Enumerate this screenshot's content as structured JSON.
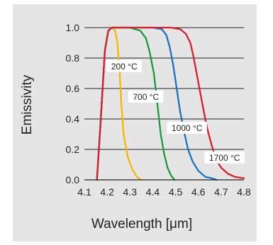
{
  "chart_data": {
    "type": "line",
    "xlabel": "Wavelength [μm]",
    "ylabel": "Emissivity",
    "xlim": [
      4.1,
      4.8
    ],
    "ylim": [
      0.0,
      1.0
    ],
    "grid": "horizontal",
    "x_ticks": [
      "4.1",
      "4.2",
      "4.3",
      "4.4",
      "4.5",
      "4.6",
      "4.7",
      "4.8"
    ],
    "y_ticks": [
      "0.0",
      "0.2",
      "0.4",
      "0.6",
      "0.8",
      "1.0"
    ],
    "series": [
      {
        "name": "200 °C",
        "color": "#f5b800",
        "points": [
          [
            4.155,
            0.0
          ],
          [
            4.17,
            0.35
          ],
          [
            4.19,
            0.85
          ],
          [
            4.205,
            0.98
          ],
          [
            4.22,
            1.0
          ],
          [
            4.235,
            0.98
          ],
          [
            4.245,
            0.9
          ],
          [
            4.255,
            0.7
          ],
          [
            4.262,
            0.5
          ],
          [
            4.272,
            0.3
          ],
          [
            4.29,
            0.15
          ],
          [
            4.31,
            0.07
          ],
          [
            4.33,
            0.02
          ],
          [
            4.35,
            0.0
          ]
        ]
      },
      {
        "name": "700 °C",
        "color": "#1a9a3a",
        "points": [
          [
            4.155,
            0.0
          ],
          [
            4.17,
            0.35
          ],
          [
            4.19,
            0.85
          ],
          [
            4.205,
            0.98
          ],
          [
            4.22,
            1.0
          ],
          [
            4.3,
            1.0
          ],
          [
            4.345,
            0.98
          ],
          [
            4.37,
            0.93
          ],
          [
            4.385,
            0.85
          ],
          [
            4.405,
            0.7
          ],
          [
            4.42,
            0.5
          ],
          [
            4.435,
            0.3
          ],
          [
            4.45,
            0.17
          ],
          [
            4.465,
            0.08
          ],
          [
            4.48,
            0.03
          ],
          [
            4.495,
            0.0
          ]
        ]
      },
      {
        "name": "1000 °C",
        "color": "#1a72c0",
        "points": [
          [
            4.155,
            0.0
          ],
          [
            4.17,
            0.35
          ],
          [
            4.19,
            0.85
          ],
          [
            4.205,
            0.98
          ],
          [
            4.22,
            1.0
          ],
          [
            4.4,
            1.0
          ],
          [
            4.44,
            0.99
          ],
          [
            4.46,
            0.95
          ],
          [
            4.475,
            0.87
          ],
          [
            4.49,
            0.75
          ],
          [
            4.505,
            0.6
          ],
          [
            4.52,
            0.45
          ],
          [
            4.54,
            0.3
          ],
          [
            4.555,
            0.2
          ],
          [
            4.575,
            0.12
          ],
          [
            4.6,
            0.06
          ],
          [
            4.63,
            0.02
          ],
          [
            4.66,
            0.01
          ],
          [
            4.68,
            0.0
          ]
        ]
      },
      {
        "name": "1700 °C",
        "color": "#d81f2a",
        "points": [
          [
            4.155,
            0.0
          ],
          [
            4.17,
            0.35
          ],
          [
            4.19,
            0.85
          ],
          [
            4.205,
            0.98
          ],
          [
            4.22,
            1.0
          ],
          [
            4.48,
            1.0
          ],
          [
            4.52,
            0.99
          ],
          [
            4.545,
            0.96
          ],
          [
            4.565,
            0.9
          ],
          [
            4.58,
            0.8
          ],
          [
            4.595,
            0.68
          ],
          [
            4.61,
            0.56
          ],
          [
            4.625,
            0.44
          ],
          [
            4.64,
            0.33
          ],
          [
            4.66,
            0.22
          ],
          [
            4.68,
            0.13
          ],
          [
            4.7,
            0.08
          ],
          [
            4.73,
            0.04
          ],
          [
            4.76,
            0.02
          ],
          [
            4.8,
            0.01
          ]
        ]
      }
    ],
    "labels": [
      {
        "text": "200 °C",
        "x": 4.275,
        "y": 0.745
      },
      {
        "text": "700 °C",
        "x": 4.37,
        "y": 0.545
      },
      {
        "text": "1000 °C",
        "x": 4.55,
        "y": 0.34
      },
      {
        "text": "1700 °C",
        "x": 4.715,
        "y": 0.145
      }
    ]
  }
}
